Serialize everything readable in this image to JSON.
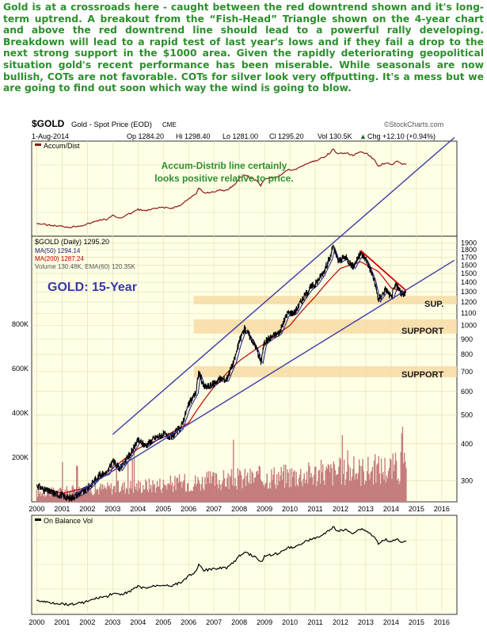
{
  "headline": "Gold is at a crossroads here - caught between the red downtrend shown and it's long-term uptrend. A breakout from the “Fish-Head” Triangle shown on the 4-year chart and above the red downtrend line should lead to a powerful rally developing. Breakdown will lead to a rapid test of last year's lows and if they fail a drop to the next strong support in the $1000 area. Given the rapidly deteriorating geopolitical situation gold's recent performance has been miserable. While seasonals are now bullish, COTs are not favorable. COTs for silver look very offputting. It's a mess but we are going to find out soon which way the wind is going to blow.",
  "header": {
    "symbol": "$GOLD",
    "name": "Gold - Spot Price (EOD)",
    "exchange": "CME",
    "date": "1-Aug-2014",
    "op": "Op 1284.20",
    "hi": "Hi 1298.40",
    "lo": "Lo 1281.00",
    "cl": "Cl 1295.20",
    "vol": "Vol 130.5K",
    "chg": "Chg +12.10 (+0.94%)",
    "up_arrow": "▲",
    "credit": "©StockCharts.com"
  },
  "colors": {
    "panel_bg": "#ffffe6",
    "grid": "#dcdcb4",
    "price": "#000000",
    "ma50": "#1a1a8c",
    "ma200": "#c00000",
    "trendline": "#3a3aa8",
    "downtrend": "#d40000",
    "support_band": "#f6d9a0",
    "volume": "#c47d7d",
    "accent_green": "#2c8f2c",
    "title_blue": "#3838a8"
  },
  "accum_panel": {
    "label": "Accum/Dist",
    "annotation_line1": "Accum-Distrib line certainly",
    "annotation_line2": "looks positive relative to price."
  },
  "price_panel": {
    "title": "GOLD: 15-Year",
    "legend": [
      {
        "text": "$GOLD (Daily) 1295.20",
        "color": "#000000"
      },
      {
        "text": "MA(50) 1294.14",
        "color": "#1a1a8c"
      },
      {
        "text": "MA(200) 1287.24",
        "color": "#c00000"
      },
      {
        "text": "Volume 130.48K, EMA(60) 120.35K",
        "color": "#c47d7d"
      }
    ],
    "support_labels": [
      "SUP.",
      "SUPPORT",
      "SUPPORT"
    ]
  },
  "obv_panel": {
    "label": "On Balance Vol"
  },
  "chart_data": {
    "type": "line",
    "title": "$GOLD Gold - Spot Price (EOD) CME",
    "y_scale": "log",
    "ylim": [
      255,
      2000
    ],
    "y_ticks": [
      "300",
      "400",
      "500",
      "600",
      "700",
      "800",
      "900",
      "1000",
      "1100",
      "1200",
      "1300",
      "1400",
      "1500",
      "1600",
      "1700",
      "1800",
      "1900"
    ],
    "volume_ticks": [
      "200K",
      "400K",
      "600K",
      "800K"
    ],
    "x_ticks": [
      "2000",
      "2001",
      "2002",
      "2003",
      "2004",
      "2005",
      "2006",
      "2007",
      "2008",
      "2009",
      "2010",
      "2011",
      "2012",
      "2013",
      "2014",
      "2015",
      "2016"
    ],
    "price_series": {
      "name": "$GOLD (Daily) 1295.20",
      "x": [
        2000.0,
        2000.3,
        2000.7,
        2001.0,
        2001.3,
        2001.6,
        2001.9,
        2002.2,
        2002.5,
        2002.8,
        2003.0,
        2003.3,
        2003.7,
        2004.0,
        2004.3,
        2004.7,
        2005.0,
        2005.3,
        2005.7,
        2006.0,
        2006.3,
        2006.4,
        2006.6,
        2006.9,
        2007.2,
        2007.5,
        2007.8,
        2008.0,
        2008.2,
        2008.5,
        2008.7,
        2008.85,
        2009.0,
        2009.3,
        2009.6,
        2009.9,
        2010.2,
        2010.5,
        2010.8,
        2011.0,
        2011.3,
        2011.6,
        2011.7,
        2011.9,
        2012.2,
        2012.5,
        2012.8,
        2013.0,
        2013.3,
        2013.5,
        2013.8,
        2014.0,
        2014.2,
        2014.4,
        2014.58
      ],
      "y": [
        290,
        280,
        272,
        268,
        262,
        270,
        278,
        295,
        315,
        320,
        350,
        330,
        370,
        410,
        395,
        420,
        430,
        420,
        455,
        540,
        600,
        700,
        620,
        630,
        660,
        660,
        760,
        880,
        980,
        900,
        830,
        750,
        880,
        920,
        950,
        1100,
        1110,
        1230,
        1340,
        1380,
        1500,
        1700,
        1850,
        1650,
        1700,
        1580,
        1750,
        1680,
        1450,
        1220,
        1330,
        1240,
        1380,
        1280,
        1295
      ]
    },
    "ma200_series": {
      "name": "MA(200) 1287.24",
      "x": [
        2000.3,
        2001.0,
        2002.0,
        2003.0,
        2004.0,
        2005.0,
        2006.0,
        2007.0,
        2008.0,
        2009.0,
        2010.0,
        2011.0,
        2012.0,
        2012.8,
        2013.5,
        2014.0,
        2014.58
      ],
      "y": [
        285,
        272,
        285,
        330,
        385,
        420,
        470,
        620,
        760,
        870,
        1000,
        1250,
        1560,
        1640,
        1520,
        1340,
        1287
      ]
    },
    "uptrend_upper": {
      "x": [
        2003.0,
        2016.5
      ],
      "y": [
        430,
        4300
      ]
    },
    "uptrend_lower": {
      "x": [
        2001.5,
        2016.5
      ],
      "y": [
        270,
        1660
      ]
    },
    "downtrend": {
      "x": [
        2012.8,
        2014.6
      ],
      "y": [
        1790,
        1310
      ]
    },
    "support_zones": [
      [
        1180,
        1260
      ],
      [
        940,
        1050
      ],
      [
        670,
        730
      ]
    ],
    "volume_peaks_K": [
      40,
      60,
      80,
      110,
      140,
      170,
      190,
      200,
      210,
      180,
      140,
      120
    ]
  }
}
